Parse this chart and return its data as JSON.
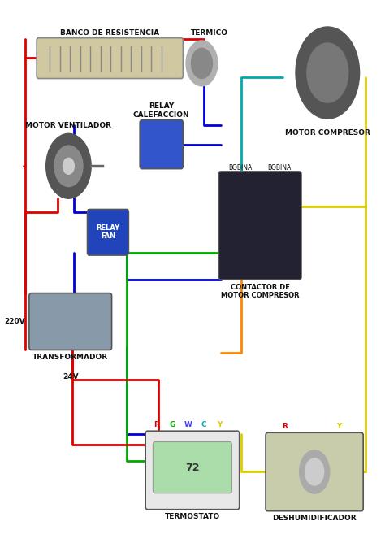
{
  "background_color": "#ffffff",
  "title": "",
  "fig_width": 4.74,
  "fig_height": 6.68,
  "dpi": 100,
  "labels": {
    "banco": "BANCO DE RESISTENCIA",
    "termico": "TERMICO",
    "motor_ventilador": "MOTOR VENTILADOR",
    "relay_calefaccion": "RELAY\nCALEFACCION",
    "relay_fan": "RELAY\nFAN",
    "motor_compresor": "MOTOR COMPRESOR",
    "bobina_left": "BOBINA",
    "bobina_right": "BOBINA",
    "contactor": "CONTACTOR DE\nMOTOR COMPRESOR",
    "transformador": "TRANSFORMADOR",
    "v220": "220V",
    "v24": "24V",
    "termostato": "TERMOSTATO",
    "deshumidificador": "DESHUMIDIFICADOR",
    "R": "R",
    "G": "G",
    "W": "W",
    "C": "C",
    "Y": "Y",
    "R2": "R",
    "Y2": "Y"
  },
  "colors": {
    "red": "#e00000",
    "blue": "#0000dd",
    "green": "#00aa00",
    "yellow": "#ddcc00",
    "orange": "#ff8800",
    "cyan": "#00aaaa",
    "white": "#ffffff",
    "black": "#111111",
    "gray_light": "#cccccc",
    "gray": "#888888",
    "bg": "#f5f5f5"
  },
  "component_boxes": {
    "banco": [
      0.12,
      0.855,
      0.38,
      0.07
    ],
    "termico": [
      0.46,
      0.845,
      0.12,
      0.085
    ],
    "motor_ventilador": [
      0.05,
      0.64,
      0.22,
      0.12
    ],
    "relay_calefaccion": [
      0.38,
      0.69,
      0.1,
      0.09
    ],
    "relay_fan": [
      0.22,
      0.535,
      0.1,
      0.08
    ],
    "motor_compresor": [
      0.72,
      0.78,
      0.22,
      0.18
    ],
    "contactor": [
      0.58,
      0.5,
      0.2,
      0.18
    ],
    "transformador": [
      0.07,
      0.36,
      0.2,
      0.1
    ],
    "termostato": [
      0.38,
      0.075,
      0.22,
      0.13
    ],
    "deshumidificador": [
      0.68,
      0.065,
      0.22,
      0.13
    ]
  }
}
